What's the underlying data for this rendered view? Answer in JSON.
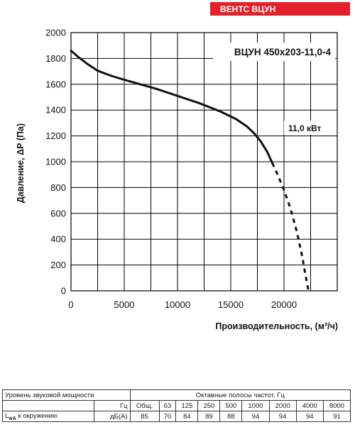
{
  "brand": "ВЕНТС ВЦУН",
  "chart_data": {
    "type": "line",
    "title": "ВЦУН 450х203-11,0-4",
    "xlabel": "Производительность, (м³/ч)",
    "ylabel": "Давление, ΔР (Па)",
    "xlim": [
      0,
      25000
    ],
    "ylim": [
      0,
      2000
    ],
    "x_ticks": [
      0,
      5000,
      10000,
      15000,
      20000
    ],
    "y_ticks": [
      0,
      200,
      400,
      600,
      800,
      1000,
      1200,
      1400,
      1600,
      1800,
      2000
    ],
    "grid": true,
    "power_label": "11,0 кВт",
    "series": [
      {
        "style": "solid",
        "x": [
          0,
          700,
          1500,
          2500,
          3800,
          5000,
          6500,
          8000,
          10000,
          12000,
          14000,
          15500,
          16500,
          17200,
          17800,
          18400,
          18900
        ],
        "y": [
          1860,
          1810,
          1760,
          1705,
          1665,
          1635,
          1600,
          1565,
          1510,
          1455,
          1390,
          1330,
          1275,
          1220,
          1160,
          1080,
          990
        ]
      },
      {
        "style": "dashed",
        "x": [
          18900,
          19400,
          20000,
          20600,
          21200,
          21700,
          22000,
          22300
        ],
        "y": [
          990,
          900,
          780,
          640,
          460,
          270,
          130,
          0
        ]
      }
    ]
  },
  "sound_table": {
    "header_left": "Уровень звуковой мощности",
    "header_right": "Октавные полосы частот, Гц",
    "unit_hz": "Гц",
    "label_total": "Общ.",
    "frequencies": [
      "63",
      "125",
      "250",
      "500",
      "1000",
      "2000",
      "4000",
      "8000"
    ],
    "row_label_prefix": "L",
    "row_label_sub": "wA",
    "row_label_suffix": " к окружению",
    "row_unit": "дБ(А)",
    "total_value": "85",
    "values": [
      "70",
      "84",
      "89",
      "88",
      "94",
      "94",
      "94",
      "91"
    ]
  }
}
